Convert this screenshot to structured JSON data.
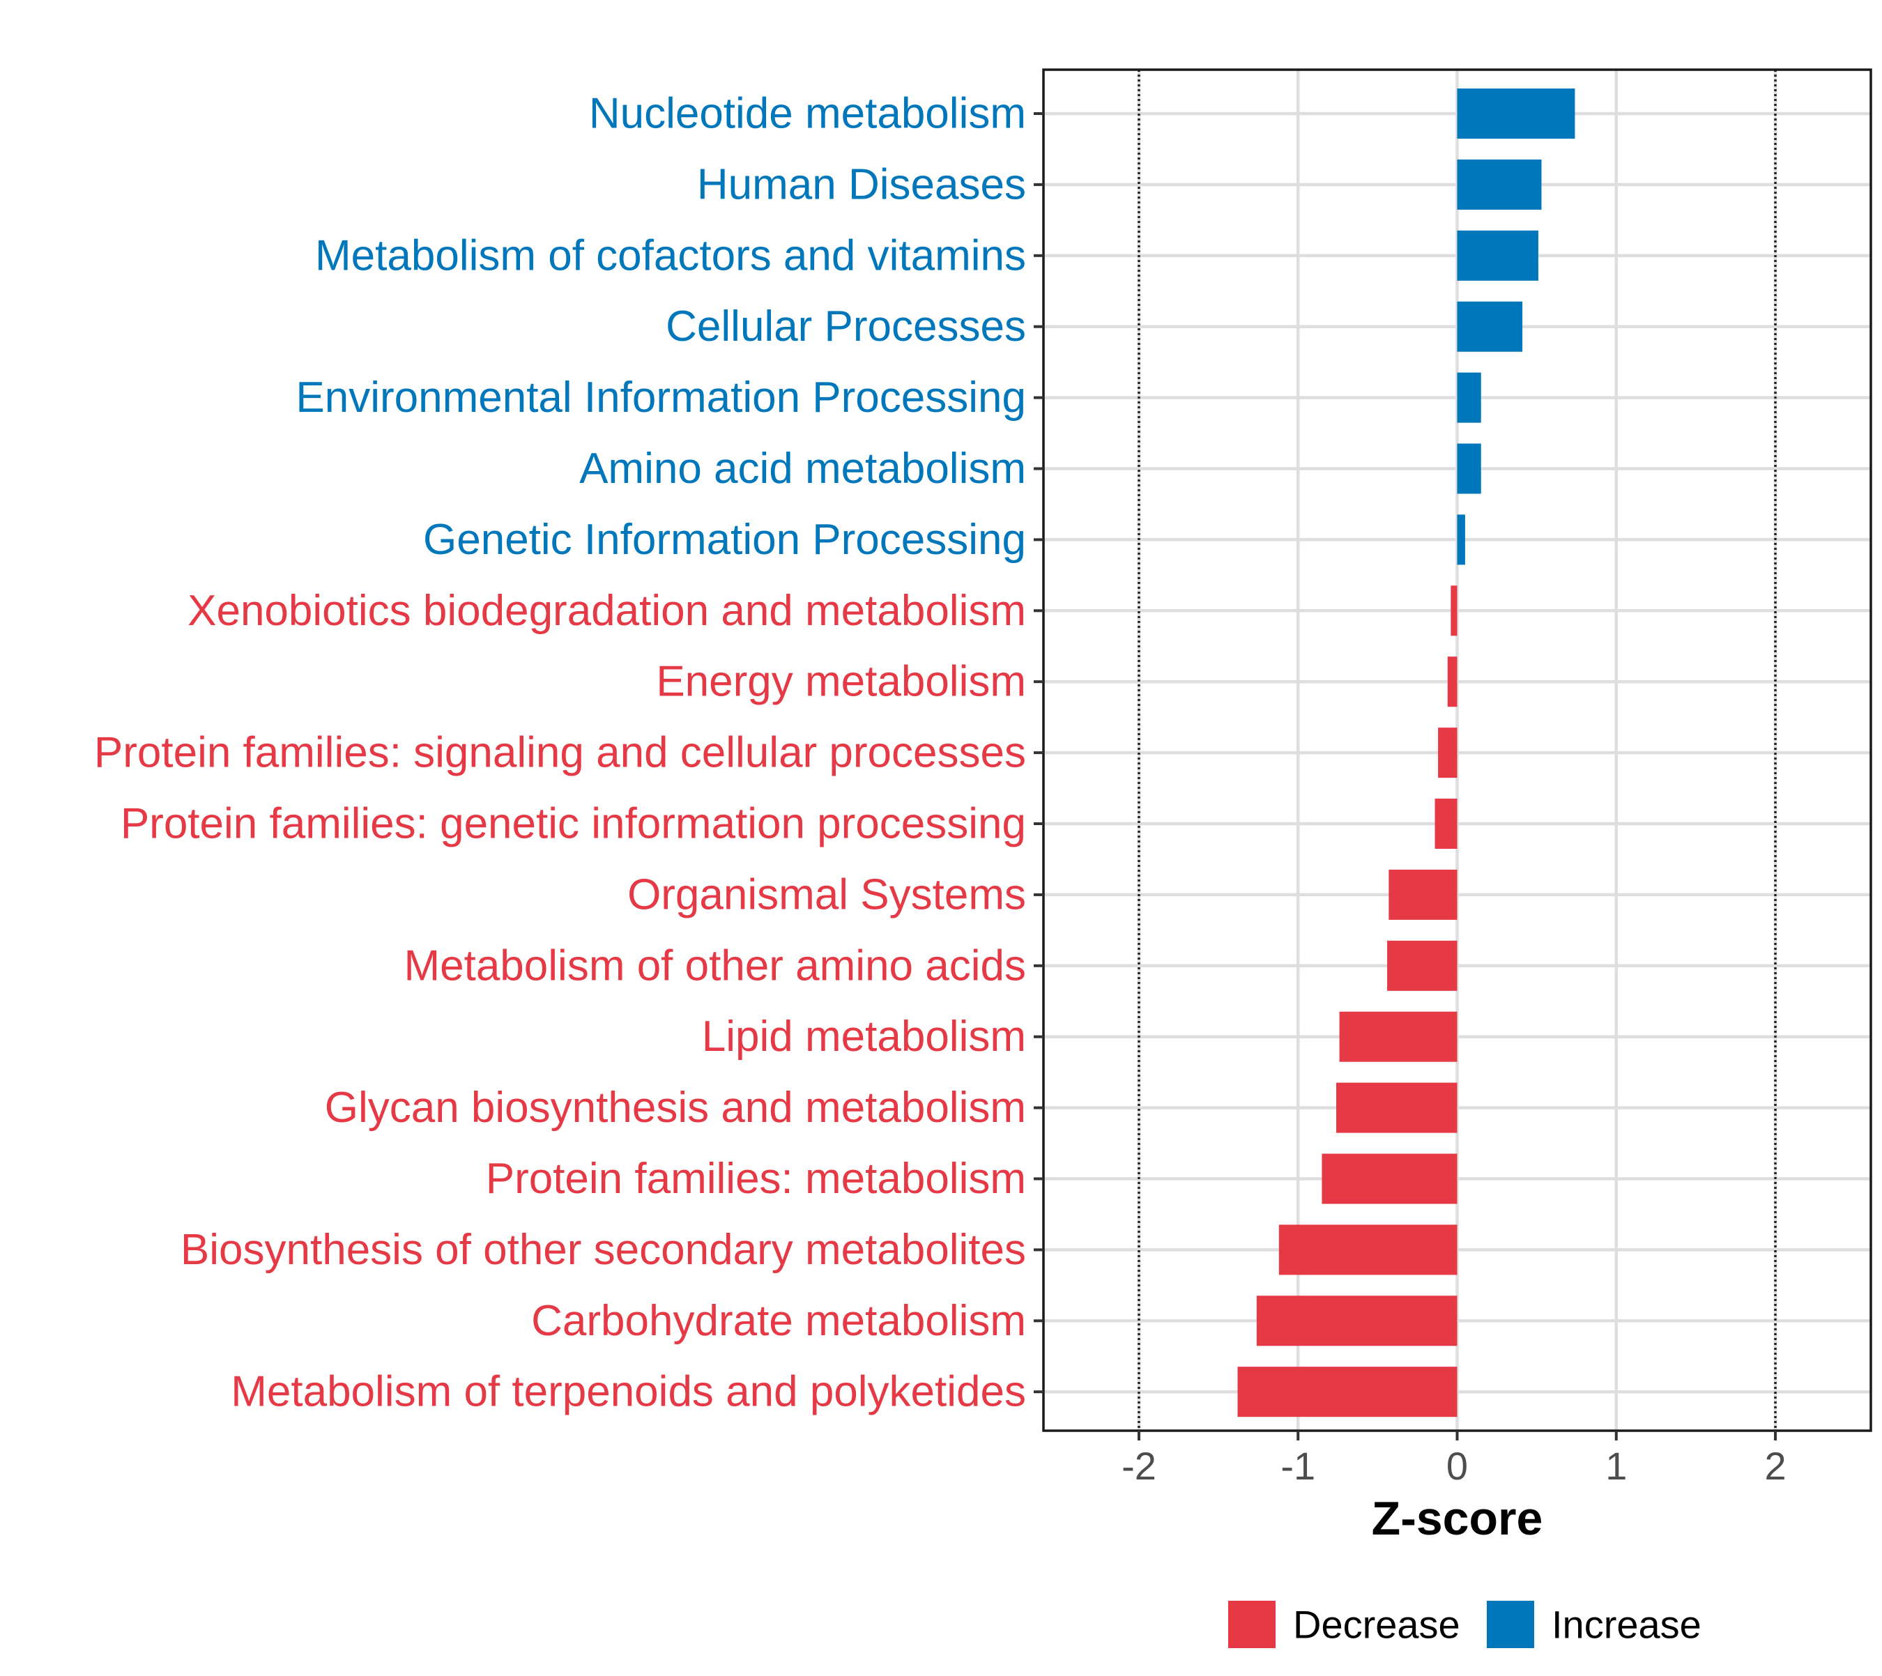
{
  "chart_data": {
    "type": "bar",
    "orientation": "horizontal",
    "title": "",
    "xlabel": "Z-score",
    "ylabel": "",
    "xlim": [
      -2.6,
      2.6
    ],
    "x_ticks": [
      -2,
      -1,
      0,
      1,
      2
    ],
    "x_tick_labels": [
      "-2",
      "-1",
      "0",
      "1",
      "2"
    ],
    "reference_lines": [
      -2,
      2
    ],
    "grid": true,
    "colors": {
      "Decrease": "#E63946",
      "Increase": "#0077BB"
    },
    "categories": [
      "Nucleotide metabolism",
      "Human Diseases",
      "Metabolism of cofactors and vitamins",
      "Cellular Processes",
      "Environmental Information Processing",
      "Amino acid metabolism",
      "Genetic Information Processing",
      "Xenobiotics biodegradation and metabolism",
      "Energy metabolism",
      "Protein families: signaling and cellular processes",
      "Protein families: genetic information processing",
      "Organismal Systems",
      "Metabolism of other amino acids",
      "Lipid metabolism",
      "Glycan biosynthesis and metabolism",
      "Protein families: metabolism",
      "Biosynthesis of other secondary metabolites",
      "Carbohydrate metabolism",
      "Metabolism of terpenoids and polyketides"
    ],
    "values": [
      0.74,
      0.53,
      0.51,
      0.41,
      0.15,
      0.15,
      0.05,
      -0.04,
      -0.06,
      -0.12,
      -0.14,
      -0.43,
      -0.44,
      -0.74,
      -0.76,
      -0.85,
      -1.12,
      -1.26,
      -1.38
    ],
    "groups": [
      "Increase",
      "Increase",
      "Increase",
      "Increase",
      "Increase",
      "Increase",
      "Increase",
      "Decrease",
      "Decrease",
      "Decrease",
      "Decrease",
      "Decrease",
      "Decrease",
      "Decrease",
      "Decrease",
      "Decrease",
      "Decrease",
      "Decrease",
      "Decrease"
    ],
    "legend": {
      "placement": "bottom",
      "entries": [
        "Decrease",
        "Increase"
      ]
    }
  }
}
